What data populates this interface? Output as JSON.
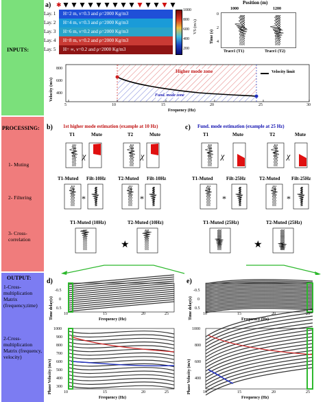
{
  "panel_a": {
    "letter": "a)",
    "layers": [
      {
        "label": "Lay. 1",
        "text": "H=2 m, ν=0.3 and ρ=2000 Kg/m3",
        "color": "#1f4fd8"
      },
      {
        "label": "Lay. 2",
        "text": "H=4 m, ν=0.3 and ρ=2000 Kg/m3",
        "color": "#1a9bd8"
      },
      {
        "label": "Lay. 3",
        "text": "H=6 m, ν=0.2 and ρ=2000 Kg/m3",
        "color": "#2aa4c9"
      },
      {
        "label": "Lay. 4",
        "text": "H=8 m, ν=0.2 and ρ=2000 Kg/m3",
        "color": "#c93a34"
      },
      {
        "label": "Lay. 5",
        "text": "H= ∞, ν=0.2 and ρ=2000 Kg/m3",
        "color": "#8e1414"
      }
    ],
    "colorbar": {
      "title": "VS (m/s)",
      "ticks": [
        "1000",
        "800",
        "600",
        "400",
        "200"
      ]
    },
    "position_title": "Position (m)",
    "position_ticks": [
      "1000",
      "1200"
    ],
    "time_label": "Time (s)",
    "time_ticks": [
      "0",
      "2",
      "4"
    ],
    "trace1": "Trace1 (T1)",
    "trace2": "Trace1 (T2)",
    "dispersion": {
      "ylabel": "Velocity (m/s)",
      "xlabel": "Frequency (Hz)",
      "xticks": [
        "5",
        "10",
        "15",
        "20",
        "25",
        "30"
      ],
      "yticks": [
        "800",
        "600",
        "400"
      ],
      "higher_zone": "Higher mode zone",
      "fund_zone": "Fund. mode zone",
      "legend": "Velocity limit"
    }
  },
  "sidebar": {
    "inputs": "INPUTS:",
    "processing": "PROCESSING:",
    "steps": [
      "1- Muting",
      "2- Filtering",
      "3- Cross-correlation"
    ],
    "output": "OUTPUT:",
    "out1": "1-Cross-multiplication Matrix (frequency,time)",
    "out2": "2-Cross-multiplication Matrix (frequency, velocity)"
  },
  "panel_b": {
    "letter": "b)",
    "title": "1st higher mode estimation (example at 10 Hz)",
    "t1": "T1",
    "t2": "T2",
    "mute": "Mute",
    "t1_muted": "T1-Muted",
    "t2_muted": "T2-Muted",
    "filt": "Filt-10Hz",
    "t1_muted_f": "T1-Muted (10Hz)",
    "t2_muted_f": "T2-Muted (10Hz)"
  },
  "panel_c": {
    "letter": "c)",
    "title": "Fund. mode estimation (example at 25 Hz)",
    "t1": "T1",
    "t2": "T2",
    "mute": "Mute",
    "t1_muted": "T1-Muted",
    "t2_muted": "T2-Muted",
    "filt": "Filt-25Hz",
    "t1_muted_f": "T1-Muted (25Hz)",
    "t2_muted_f": "T2-Muted (25Hz)"
  },
  "symbols": {
    "chi": "χ",
    "star": "*",
    "bigstar": "★"
  },
  "filt_ticks": [
    "5",
    "0",
    "-5"
  ],
  "panel_d": {
    "letter": "d)",
    "top_ylabel": "Time delay(s)",
    "top_yticks": [
      "-0.5",
      "0",
      "0.5"
    ],
    "xlabel": "Frequency (Hz)",
    "xticks": [
      "10",
      "15",
      "20",
      "25"
    ],
    "bot_ylabel": "Phase Velocity (m/s)",
    "bot_yticks": [
      "1000",
      "900",
      "800",
      "700",
      "600",
      "500",
      "400",
      "300"
    ]
  },
  "panel_e": {
    "letter": "e)",
    "top_ylabel": "Time delay(s)",
    "top_yticks": [
      "-0.5",
      "0",
      "0.5"
    ],
    "xlabel": "Frequency (Hz)",
    "xticks": [
      "10",
      "15",
      "20",
      "25"
    ],
    "bot_ylabel": "Phase Velocity (m/s)",
    "bot_yticks": [
      "1000",
      "800",
      "600",
      "400"
    ]
  }
}
